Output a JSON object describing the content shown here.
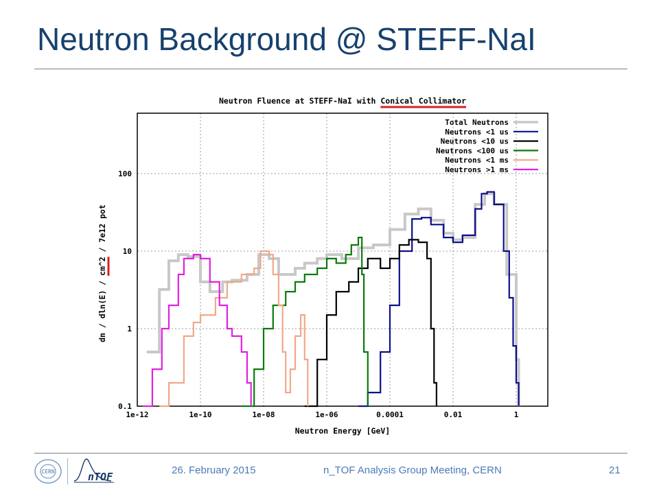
{
  "slide": {
    "title": "Neutron Background @ STEFF-NaI",
    "footer_date": "26. February 2015",
    "footer_meeting": "n_TOF Analysis Group Meeting, CERN",
    "page_number": "21",
    "cern_logo_text": "CERN",
    "ntof_logo_text": "nTOF"
  },
  "chart_data": {
    "type": "line",
    "title": "Neutron Fluence at STEFF-NaI with Conical Collimator",
    "title_highlight": "Conical Collimator",
    "xlabel": "Neutron Energy [GeV]",
    "ylabel": "dn / dln(E) / cm^2 / 7e12 pot",
    "ylabel_highlight": "cm^2",
    "x_scale": "log",
    "y_scale": "log",
    "xlim": [
      1e-12,
      10
    ],
    "ylim": [
      0.1,
      600
    ],
    "xticks": [
      {
        "value": 1e-12,
        "label": "1e-12"
      },
      {
        "value": 1e-10,
        "label": "1e-10"
      },
      {
        "value": 1e-08,
        "label": "1e-08"
      },
      {
        "value": 1e-06,
        "label": "1e-06"
      },
      {
        "value": 0.0001,
        "label": "0.0001"
      },
      {
        "value": 0.01,
        "label": "0.01"
      },
      {
        "value": 1,
        "label": "1"
      }
    ],
    "yticks": [
      {
        "value": 0.1,
        "label": "0.1"
      },
      {
        "value": 1,
        "label": "1"
      },
      {
        "value": 10,
        "label": "10"
      },
      {
        "value": 100,
        "label": "100"
      }
    ],
    "grid": true,
    "legend_position": "top-right",
    "series": [
      {
        "name": "Total Neutrons",
        "color": "#c8c8c8",
        "points": [
          [
            2e-12,
            0.5
          ],
          [
            5e-12,
            3.2
          ],
          [
            1e-11,
            7.5
          ],
          [
            2e-11,
            9
          ],
          [
            4e-11,
            8.5
          ],
          [
            1e-10,
            4
          ],
          [
            2e-10,
            3
          ],
          [
            5e-10,
            4
          ],
          [
            1e-09,
            4.2
          ],
          [
            3e-09,
            5
          ],
          [
            7e-09,
            9
          ],
          [
            1.5e-08,
            8
          ],
          [
            3e-08,
            5
          ],
          [
            6e-08,
            5
          ],
          [
            1e-07,
            6
          ],
          [
            2e-07,
            7
          ],
          [
            5e-07,
            8
          ],
          [
            1e-06,
            9
          ],
          [
            3e-06,
            8
          ],
          [
            1e-05,
            11
          ],
          [
            3e-05,
            12
          ],
          [
            0.0001,
            19
          ],
          [
            0.0003,
            30
          ],
          [
            0.0008,
            35
          ],
          [
            0.002,
            25
          ],
          [
            0.005,
            17
          ],
          [
            0.01,
            14
          ],
          [
            0.02,
            15
          ],
          [
            0.05,
            40
          ],
          [
            0.1,
            55
          ],
          [
            0.2,
            40
          ],
          [
            0.5,
            5
          ],
          [
            1,
            0.4
          ],
          [
            1.2,
            0.1
          ]
        ]
      },
      {
        "name": "Neutrons <1 us",
        "color": "#0a0f8a",
        "points": [
          [
            1e-05,
            0.1
          ],
          [
            2e-05,
            0.15
          ],
          [
            5e-05,
            0.5
          ],
          [
            0.0001,
            2
          ],
          [
            0.0002,
            10
          ],
          [
            0.0005,
            26
          ],
          [
            0.001,
            27
          ],
          [
            0.002,
            22
          ],
          [
            0.005,
            15
          ],
          [
            0.01,
            13
          ],
          [
            0.02,
            16
          ],
          [
            0.05,
            35
          ],
          [
            0.08,
            55
          ],
          [
            0.12,
            58
          ],
          [
            0.2,
            40
          ],
          [
            0.4,
            10
          ],
          [
            0.6,
            2.5
          ],
          [
            0.8,
            0.6
          ],
          [
            1,
            0.2
          ],
          [
            1.2,
            0.1
          ]
        ]
      },
      {
        "name": "Neutrons <10 us",
        "color": "#000000",
        "points": [
          [
            2e-07,
            0.1
          ],
          [
            5e-07,
            0.4
          ],
          [
            1e-06,
            1.5
          ],
          [
            2e-06,
            3
          ],
          [
            5e-06,
            4
          ],
          [
            1e-05,
            6
          ],
          [
            2e-05,
            8
          ],
          [
            5e-05,
            6
          ],
          [
            0.0001,
            8
          ],
          [
            0.0002,
            12
          ],
          [
            0.0004,
            14
          ],
          [
            0.0008,
            13
          ],
          [
            0.0015,
            8
          ],
          [
            0.002,
            1
          ],
          [
            0.0025,
            0.2
          ],
          [
            0.003,
            0.1
          ]
        ]
      },
      {
        "name": "Neutrons <100 us",
        "color": "#0a7a0a",
        "points": [
          [
            2e-09,
            0.1
          ],
          [
            5e-09,
            0.3
          ],
          [
            1e-08,
            1
          ],
          [
            2e-08,
            2
          ],
          [
            5e-08,
            3
          ],
          [
            1e-07,
            4
          ],
          [
            2e-07,
            5
          ],
          [
            5e-07,
            6
          ],
          [
            1e-06,
            8
          ],
          [
            2e-06,
            7
          ],
          [
            4e-06,
            9
          ],
          [
            6e-06,
            12
          ],
          [
            1e-05,
            15
          ],
          [
            1.3e-05,
            5
          ],
          [
            1.5e-05,
            0.5
          ],
          [
            2e-05,
            0.1
          ]
        ]
      },
      {
        "name": "Neutrons <1 ms",
        "color": "#f0a888",
        "points": [
          [
            5e-12,
            0.1
          ],
          [
            1e-11,
            0.2
          ],
          [
            3e-11,
            0.8
          ],
          [
            6e-11,
            1.2
          ],
          [
            1e-10,
            1.5
          ],
          [
            3e-10,
            2.5
          ],
          [
            7e-10,
            4
          ],
          [
            2e-09,
            5
          ],
          [
            5e-09,
            6
          ],
          [
            8e-09,
            10
          ],
          [
            1.5e-08,
            9
          ],
          [
            2e-08,
            5
          ],
          [
            3e-08,
            2
          ],
          [
            4e-08,
            0.5
          ],
          [
            5e-08,
            0.15
          ],
          [
            7e-08,
            0.3
          ],
          [
            1e-07,
            0.8
          ],
          [
            1.5e-07,
            1.5
          ],
          [
            2e-07,
            0.4
          ],
          [
            2.5e-07,
            0.1
          ]
        ]
      },
      {
        "name": "Neutrons >1 ms",
        "color": "#e020e0",
        "points": [
          [
            1.5e-12,
            0.1
          ],
          [
            3e-12,
            0.3
          ],
          [
            6e-12,
            1
          ],
          [
            1e-11,
            2
          ],
          [
            2e-11,
            5
          ],
          [
            3e-11,
            8
          ],
          [
            6e-11,
            9
          ],
          [
            1e-10,
            8
          ],
          [
            2e-10,
            4
          ],
          [
            4e-10,
            2
          ],
          [
            7e-10,
            1
          ],
          [
            1e-09,
            0.8
          ],
          [
            2e-09,
            0.5
          ],
          [
            3e-09,
            0.2
          ],
          [
            4e-09,
            0.1
          ]
        ]
      }
    ]
  }
}
